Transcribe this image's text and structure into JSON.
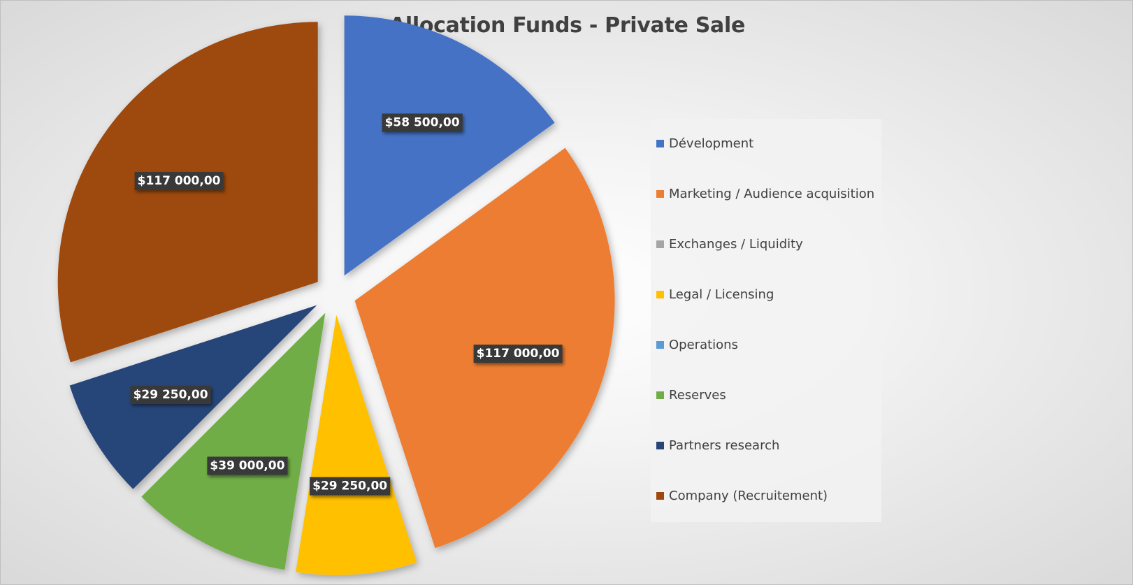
{
  "chart_data": {
    "type": "pie",
    "title": "Allocation Funds - Private Sale",
    "categories": [
      "Dévelopment",
      "Marketing / Audience acquisition",
      "Exchanges / Liquidity",
      "Legal / Licensing",
      "Operations",
      "Reserves",
      "Partners research",
      "Company (Recruitement)"
    ],
    "values": [
      58500,
      117000,
      0,
      29250,
      0,
      39000,
      29250,
      117000
    ],
    "data_labels": [
      "$58 500,00",
      "$117 000,00",
      "",
      "$29 250,00",
      "",
      "$39 000,00",
      "$29 250,00",
      "$117 000,00"
    ],
    "colors": [
      "#4472C4",
      "#ED7D31",
      "#A5A5A5",
      "#FFC000",
      "#5B9BD5",
      "#70AD47",
      "#264478",
      "#9E480E"
    ],
    "exploded": true,
    "legend_position": "right"
  }
}
